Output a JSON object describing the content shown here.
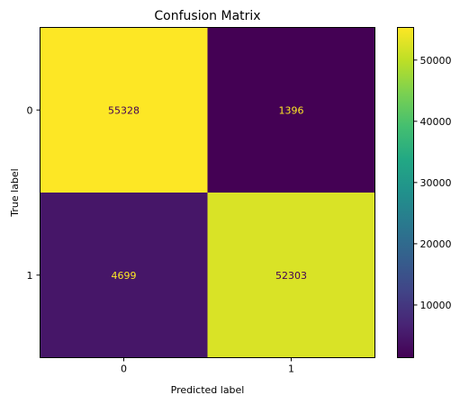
{
  "chart_data": {
    "type": "heatmap",
    "title": "Confusion Matrix",
    "xlabel": "Predicted label",
    "ylabel": "True label",
    "x_categories": [
      "0",
      "1"
    ],
    "y_categories": [
      "0",
      "1"
    ],
    "values": [
      [
        55328,
        1396
      ],
      [
        4699,
        52303
      ]
    ],
    "colormap": "viridis",
    "colorbar": {
      "range": [
        1396,
        55328
      ],
      "ticks": [
        10000,
        20000,
        30000,
        40000,
        50000
      ],
      "tick_labels": [
        "10000",
        "20000",
        "30000",
        "40000",
        "50000"
      ]
    },
    "label_colors": {
      "on_dark": "#fde725",
      "on_light": "#440154"
    }
  }
}
